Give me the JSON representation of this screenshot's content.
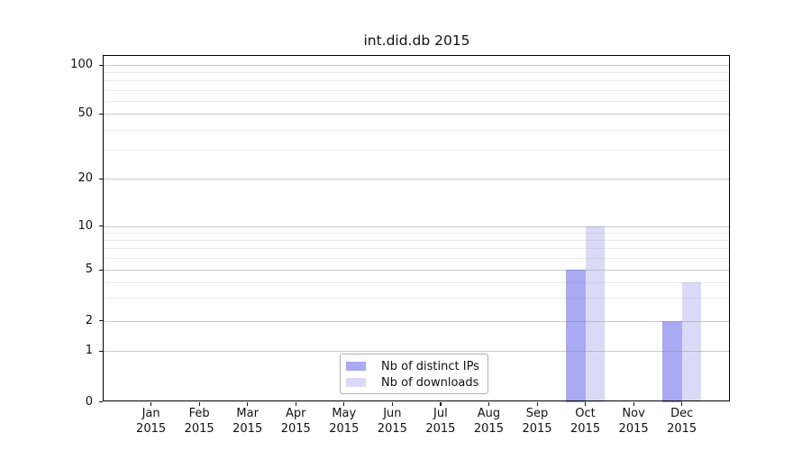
{
  "chart_data": {
    "type": "bar",
    "title": "int.did.db 2015",
    "xlabel": "",
    "ylabel": "",
    "categories": [
      "Jan 2015",
      "Feb 2015",
      "Mar 2015",
      "Apr 2015",
      "May 2015",
      "Jun 2015",
      "Jul 2015",
      "Aug 2015",
      "Sep 2015",
      "Oct 2015",
      "Nov 2015",
      "Dec 2015"
    ],
    "series": [
      {
        "name": "Nb of distinct IPs",
        "color": "#a9a9f4",
        "values": [
          0,
          0,
          0,
          0,
          0,
          0,
          0,
          0,
          0,
          5,
          0,
          2
        ]
      },
      {
        "name": "Nb of downloads",
        "color": "#dadaf8",
        "values": [
          0,
          0,
          0,
          0,
          0,
          0,
          0,
          0,
          0,
          10,
          0,
          4
        ]
      }
    ],
    "yscale": "symlog",
    "yticks": [
      0,
      1,
      2,
      5,
      10,
      20,
      50,
      100
    ],
    "minor_yticks": [
      3,
      4,
      6,
      7,
      8,
      9,
      30,
      40,
      60,
      70,
      80,
      90
    ],
    "ylim": [
      0,
      115
    ],
    "grid": true,
    "legend_position": "lower center"
  }
}
